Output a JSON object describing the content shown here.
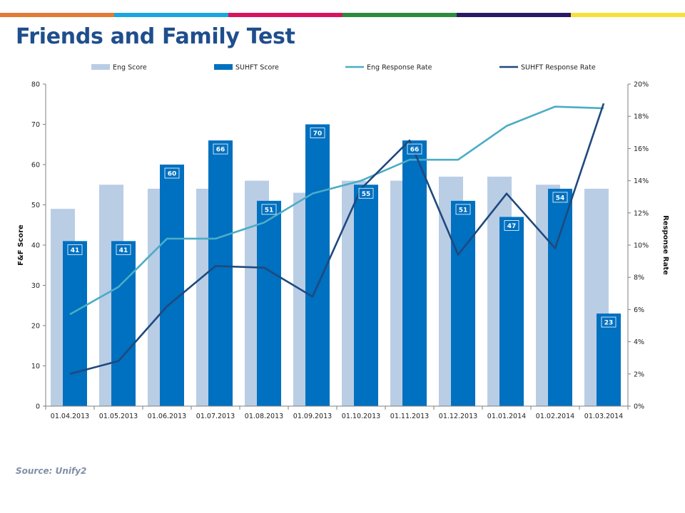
{
  "header": {
    "title": "Friends and Family Test",
    "bar_colors": [
      "#e07b39",
      "#1ba6e0",
      "#d6145f",
      "#2e8b3e",
      "#2a1a66",
      "#f7e03c"
    ]
  },
  "footer": {
    "source": "Source: Unify2"
  },
  "chart_data": {
    "type": "bar",
    "categories": [
      "01.04.2013",
      "01.05.2013",
      "01.06.2013",
      "01.07.2013",
      "01.08.2013",
      "01.09.2013",
      "01.10.2013",
      "01.11.2013",
      "01.12.2013",
      "01.01.2014",
      "01.02.2014",
      "01.03.2014"
    ],
    "bar_series": [
      {
        "name": "Eng Score",
        "color": "#b9cde5",
        "values": [
          49,
          55,
          54,
          54,
          56,
          53,
          56,
          56,
          57,
          57,
          55,
          54
        ]
      },
      {
        "name": "SUHFT Score",
        "color": "#0070c0",
        "values": [
          41,
          41,
          60,
          66,
          51,
          70,
          55,
          66,
          51,
          47,
          54,
          23
        ],
        "data_labels": [
          "41",
          "41",
          "60",
          "66",
          "51",
          "70",
          "55",
          "66",
          "51",
          "47",
          "54",
          "23"
        ]
      }
    ],
    "line_series": [
      {
        "name": "Eng Response Rate",
        "color": "#4bacc6",
        "axis": "right",
        "values": [
          5.7,
          7.4,
          10.4,
          10.4,
          11.4,
          13.2,
          14.0,
          15.3,
          15.3,
          17.4,
          18.6,
          18.5
        ]
      },
      {
        "name": "SUHFT Response Rate",
        "color": "#1f497d",
        "axis": "right",
        "values": [
          2.0,
          2.8,
          6.2,
          8.7,
          8.6,
          6.8,
          13.5,
          16.5,
          9.4,
          13.2,
          9.8,
          18.8
        ]
      }
    ],
    "ylabel": "F&F Score",
    "y2label": "Response Rate",
    "ylim": [
      0,
      80
    ],
    "yticks": [
      "0",
      "10",
      "20",
      "30",
      "40",
      "50",
      "60",
      "70",
      "80"
    ],
    "y2lim": [
      0,
      20
    ],
    "y2ticks": [
      "0%",
      "2%",
      "4%",
      "6%",
      "8%",
      "10%",
      "12%",
      "14%",
      "16%",
      "18%",
      "20%"
    ],
    "legend_position": "top",
    "grid": false
  }
}
